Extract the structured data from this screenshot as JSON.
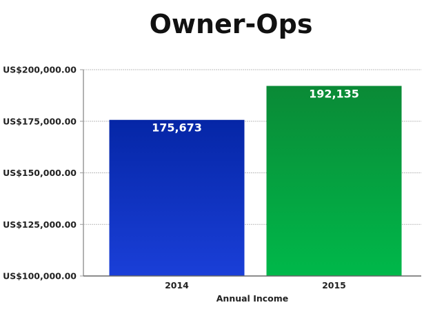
{
  "chart_data": {
    "type": "bar",
    "title": "Owner-Ops",
    "xlabel": "Annual Income",
    "ylabel": "",
    "categories": [
      "2014",
      "2015"
    ],
    "values": [
      175673,
      192135
    ],
    "data_labels": [
      "175,673",
      "192,135"
    ],
    "ylim": [
      100000,
      200000
    ],
    "yticks": [
      100000,
      125000,
      150000,
      175000,
      200000
    ],
    "ytick_labels": [
      "US$100,000.00",
      "US$125,000.00",
      "US$150,000.00",
      "US$175,000.00",
      "US$200,000.00"
    ],
    "grid": true,
    "colors": [
      [
        "#0526a6",
        "#1a3fd8"
      ],
      [
        "#0a8a36",
        "#00b84a"
      ]
    ]
  }
}
